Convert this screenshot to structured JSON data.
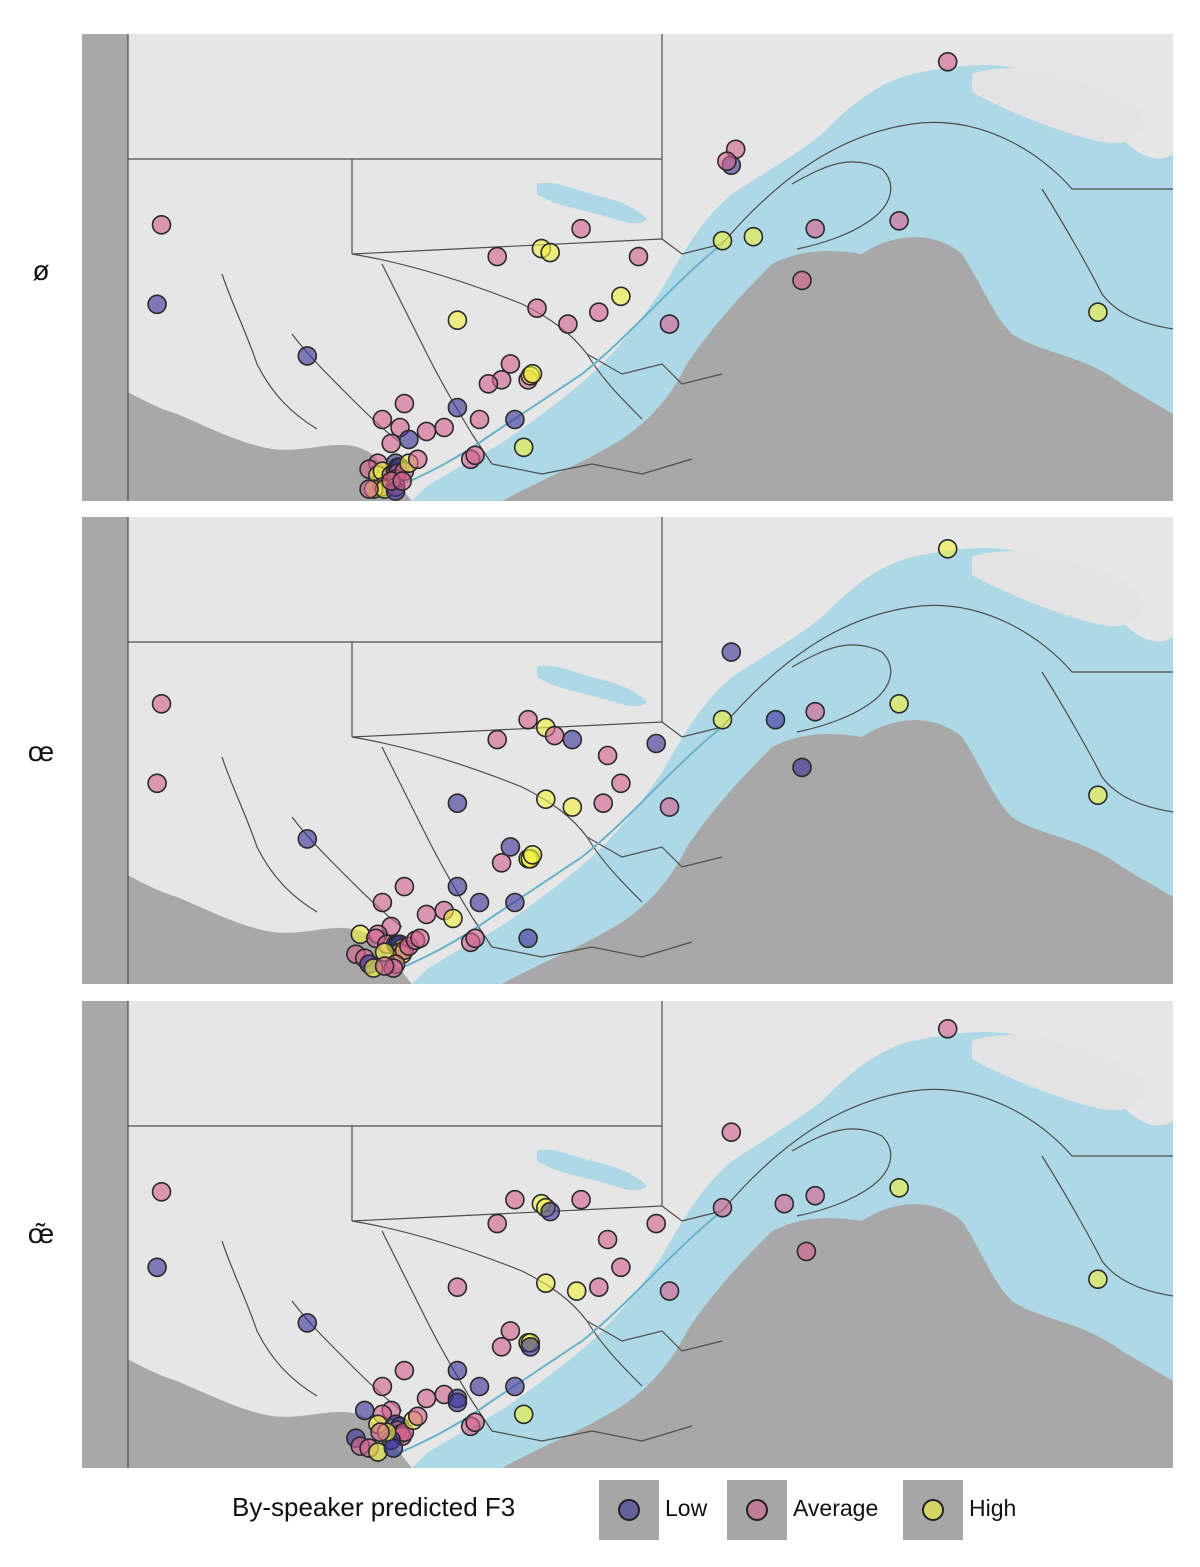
{
  "colors": {
    "land": "#e6e6e6",
    "foreign": "#a8a8a8",
    "water": "#aed8e6",
    "border": "#4d4d4d",
    "low": "#3b3598",
    "average": "#d2628e",
    "high": "#f0f040"
  },
  "facets": [
    {
      "label": "ø",
      "points": [
        {
          "lon": -78.9,
          "lat": 53.5,
          "level": "average"
        },
        {
          "lon": -79.0,
          "lat": 51.5,
          "level": "low"
        },
        {
          "lon": -75.6,
          "lat": 50.2,
          "level": "low"
        },
        {
          "lon": -71.3,
          "lat": 52.7,
          "level": "average"
        },
        {
          "lon": -69.4,
          "lat": 53.4,
          "level": "average"
        },
        {
          "lon": -70.3,
          "lat": 52.9,
          "level": "high"
        },
        {
          "lon": -70.1,
          "lat": 52.8,
          "level": "high"
        },
        {
          "lon": -65.9,
          "lat": 55.4,
          "level": "average"
        },
        {
          "lon": -66.0,
          "lat": 55.0,
          "level": "low"
        },
        {
          "lon": -66.1,
          "lat": 55.1,
          "level": "average"
        },
        {
          "lon": -64.1,
          "lat": 53.4,
          "level": "average"
        },
        {
          "lon": -65.5,
          "lat": 53.2,
          "level": "high"
        },
        {
          "lon": -66.2,
          "lat": 53.1,
          "level": "high"
        },
        {
          "lon": -68.1,
          "lat": 52.7,
          "level": "average"
        },
        {
          "lon": -62.2,
          "lat": 53.6,
          "level": "average"
        },
        {
          "lon": -61.1,
          "lat": 57.6,
          "level": "average"
        },
        {
          "lon": -64.4,
          "lat": 52.1,
          "level": "average"
        },
        {
          "lon": -68.5,
          "lat": 51.7,
          "level": "high"
        },
        {
          "lon": -70.4,
          "lat": 51.4,
          "level": "average"
        },
        {
          "lon": -69.0,
          "lat": 51.3,
          "level": "average"
        },
        {
          "lon": -69.7,
          "lat": 51.0,
          "level": "average"
        },
        {
          "lon": -67.4,
          "lat": 51.0,
          "level": "average"
        },
        {
          "lon": -72.2,
          "lat": 51.1,
          "level": "high"
        },
        {
          "lon": -57.7,
          "lat": 51.3,
          "level": "high"
        },
        {
          "lon": -71.0,
          "lat": 50.0,
          "level": "average"
        },
        {
          "lon": -71.2,
          "lat": 49.6,
          "level": "average"
        },
        {
          "lon": -71.5,
          "lat": 49.5,
          "level": "average"
        },
        {
          "lon": -70.6,
          "lat": 49.6,
          "level": "average"
        },
        {
          "lon": -70.55,
          "lat": 49.7,
          "level": "high"
        },
        {
          "lon": -70.5,
          "lat": 49.75,
          "level": "high"
        },
        {
          "lon": -72.2,
          "lat": 48.9,
          "level": "low"
        },
        {
          "lon": -73.4,
          "lat": 49.0,
          "level": "average"
        },
        {
          "lon": -73.9,
          "lat": 48.6,
          "level": "average"
        },
        {
          "lon": -72.5,
          "lat": 48.4,
          "level": "average"
        },
        {
          "lon": -71.7,
          "lat": 48.6,
          "level": "average"
        },
        {
          "lon": -73.5,
          "lat": 48.4,
          "level": "average"
        },
        {
          "lon": -73.7,
          "lat": 48.0,
          "level": "average"
        },
        {
          "lon": -73.3,
          "lat": 48.1,
          "level": "low"
        },
        {
          "lon": -72.9,
          "lat": 48.3,
          "level": "average"
        },
        {
          "lon": -70.9,
          "lat": 48.6,
          "level": "low"
        },
        {
          "lon": -71.9,
          "lat": 47.6,
          "level": "average"
        },
        {
          "lon": -71.8,
          "lat": 47.7,
          "level": "average"
        },
        {
          "lon": -70.7,
          "lat": 47.9,
          "level": "high"
        },
        {
          "lon": -73.6,
          "lat": 47.5,
          "level": "low"
        },
        {
          "lon": -74.0,
          "lat": 47.5,
          "level": "average"
        },
        {
          "lon": -74.2,
          "lat": 47.35,
          "level": "average"
        },
        {
          "lon": -74.0,
          "lat": 47.2,
          "level": "high"
        },
        {
          "lon": -73.9,
          "lat": 47.3,
          "level": "high"
        },
        {
          "lon": -73.7,
          "lat": 47.2,
          "level": "average"
        },
        {
          "lon": -73.6,
          "lat": 47.3,
          "level": "low"
        },
        {
          "lon": -73.55,
          "lat": 47.4,
          "level": "low"
        },
        {
          "lon": -73.5,
          "lat": 47.4,
          "level": "low"
        },
        {
          "lon": -73.55,
          "lat": 47.25,
          "level": "average"
        },
        {
          "lon": -73.6,
          "lat": 47.1,
          "level": "average"
        },
        {
          "lon": -73.4,
          "lat": 47.3,
          "level": "average"
        },
        {
          "lon": -73.3,
          "lat": 47.5,
          "level": "high"
        },
        {
          "lon": -73.1,
          "lat": 47.6,
          "level": "average"
        },
        {
          "lon": -73.9,
          "lat": 46.9,
          "level": "average"
        },
        {
          "lon": -74.1,
          "lat": 46.85,
          "level": "high"
        },
        {
          "lon": -73.85,
          "lat": 46.85,
          "level": "high"
        },
        {
          "lon": -73.6,
          "lat": 46.9,
          "level": "average"
        },
        {
          "lon": -73.6,
          "lat": 46.8,
          "level": "low"
        },
        {
          "lon": -74.2,
          "lat": 46.85,
          "level": "average"
        },
        {
          "lon": -73.7,
          "lat": 47.05,
          "level": "average"
        },
        {
          "lon": -73.45,
          "lat": 47.05,
          "level": "average"
        }
      ]
    },
    {
      "label": "œ",
      "points": [
        {
          "lon": -78.9,
          "lat": 53.6,
          "level": "average"
        },
        {
          "lon": -79.0,
          "lat": 51.6,
          "level": "average"
        },
        {
          "lon": -75.6,
          "lat": 50.2,
          "level": "low"
        },
        {
          "lon": -71.3,
          "lat": 52.7,
          "level": "average"
        },
        {
          "lon": -69.6,
          "lat": 52.7,
          "level": "low"
        },
        {
          "lon": -70.6,
          "lat": 53.2,
          "level": "average"
        },
        {
          "lon": -70.2,
          "lat": 53.0,
          "level": "high"
        },
        {
          "lon": -70.0,
          "lat": 52.8,
          "level": "average"
        },
        {
          "lon": -66.0,
          "lat": 54.9,
          "level": "low"
        },
        {
          "lon": -64.1,
          "lat": 53.4,
          "level": "average"
        },
        {
          "lon": -65.0,
          "lat": 53.2,
          "level": "low"
        },
        {
          "lon": -66.2,
          "lat": 53.2,
          "level": "high"
        },
        {
          "lon": -67.7,
          "lat": 52.6,
          "level": "low"
        },
        {
          "lon": -68.8,
          "lat": 52.3,
          "level": "average"
        },
        {
          "lon": -62.2,
          "lat": 53.6,
          "level": "high"
        },
        {
          "lon": -61.1,
          "lat": 57.5,
          "level": "high"
        },
        {
          "lon": -64.4,
          "lat": 52.0,
          "level": "low"
        },
        {
          "lon": -57.7,
          "lat": 51.3,
          "level": "high"
        },
        {
          "lon": -68.5,
          "lat": 51.6,
          "level": "average"
        },
        {
          "lon": -70.2,
          "lat": 51.2,
          "level": "high"
        },
        {
          "lon": -69.6,
          "lat": 51.0,
          "level": "high"
        },
        {
          "lon": -68.9,
          "lat": 51.1,
          "level": "average"
        },
        {
          "lon": -67.4,
          "lat": 51.0,
          "level": "average"
        },
        {
          "lon": -72.2,
          "lat": 51.1,
          "level": "low"
        },
        {
          "lon": -71.0,
          "lat": 50.0,
          "level": "low"
        },
        {
          "lon": -71.2,
          "lat": 49.6,
          "level": "average"
        },
        {
          "lon": -70.6,
          "lat": 49.7,
          "level": "high"
        },
        {
          "lon": -70.55,
          "lat": 49.7,
          "level": "high"
        },
        {
          "lon": -70.5,
          "lat": 49.8,
          "level": "high"
        },
        {
          "lon": -72.2,
          "lat": 49.0,
          "level": "low"
        },
        {
          "lon": -73.4,
          "lat": 49.0,
          "level": "average"
        },
        {
          "lon": -73.9,
          "lat": 48.6,
          "level": "average"
        },
        {
          "lon": -72.5,
          "lat": 48.4,
          "level": "average"
        },
        {
          "lon": -71.7,
          "lat": 48.6,
          "level": "low"
        },
        {
          "lon": -73.7,
          "lat": 48.0,
          "level": "average"
        },
        {
          "lon": -72.9,
          "lat": 48.3,
          "level": "average"
        },
        {
          "lon": -70.9,
          "lat": 48.6,
          "level": "low"
        },
        {
          "lon": -71.9,
          "lat": 47.6,
          "level": "average"
        },
        {
          "lon": -71.8,
          "lat": 47.7,
          "level": "average"
        },
        {
          "lon": -70.6,
          "lat": 47.7,
          "level": "low"
        },
        {
          "lon": -72.3,
          "lat": 48.2,
          "level": "high"
        },
        {
          "lon": -74.4,
          "lat": 47.8,
          "level": "high"
        },
        {
          "lon": -74.0,
          "lat": 47.8,
          "level": "average"
        },
        {
          "lon": -74.05,
          "lat": 47.7,
          "level": "average"
        },
        {
          "lon": -73.8,
          "lat": 47.55,
          "level": "average"
        },
        {
          "lon": -73.6,
          "lat": 47.55,
          "level": "low"
        },
        {
          "lon": -73.55,
          "lat": 47.55,
          "level": "low"
        },
        {
          "lon": -73.5,
          "lat": 47.55,
          "level": "low"
        },
        {
          "lon": -73.45,
          "lat": 47.45,
          "level": "high"
        },
        {
          "lon": -73.5,
          "lat": 47.35,
          "level": "high"
        },
        {
          "lon": -73.45,
          "lat": 47.3,
          "level": "high"
        },
        {
          "lon": -73.4,
          "lat": 47.4,
          "level": "average"
        },
        {
          "lon": -73.3,
          "lat": 47.5,
          "level": "average"
        },
        {
          "lon": -73.15,
          "lat": 47.65,
          "level": "average"
        },
        {
          "lon": -73.05,
          "lat": 47.7,
          "level": "average"
        },
        {
          "lon": -74.5,
          "lat": 47.3,
          "level": "average"
        },
        {
          "lon": -74.3,
          "lat": 47.2,
          "level": "average"
        },
        {
          "lon": -74.2,
          "lat": 47.05,
          "level": "low"
        },
        {
          "lon": -74.1,
          "lat": 46.95,
          "level": "high"
        },
        {
          "lon": -73.85,
          "lat": 47.35,
          "level": "high"
        },
        {
          "lon": -73.6,
          "lat": 47.05,
          "level": "average"
        },
        {
          "lon": -73.65,
          "lat": 46.95,
          "level": "average"
        },
        {
          "lon": -73.85,
          "lat": 47.0,
          "level": "average"
        }
      ]
    },
    {
      "label": "œ̃",
      "points": [
        {
          "lon": -78.9,
          "lat": 53.5,
          "level": "average"
        },
        {
          "lon": -79.0,
          "lat": 51.6,
          "level": "low"
        },
        {
          "lon": -75.6,
          "lat": 50.2,
          "level": "low"
        },
        {
          "lon": -71.3,
          "lat": 52.7,
          "level": "average"
        },
        {
          "lon": -69.4,
          "lat": 53.3,
          "level": "average"
        },
        {
          "lon": -70.9,
          "lat": 53.3,
          "level": "average"
        },
        {
          "lon": -70.3,
          "lat": 53.2,
          "level": "high"
        },
        {
          "lon": -70.2,
          "lat": 53.1,
          "level": "high"
        },
        {
          "lon": -70.1,
          "lat": 53.0,
          "level": "low"
        },
        {
          "lon": -66.0,
          "lat": 55.0,
          "level": "average"
        },
        {
          "lon": -64.1,
          "lat": 53.4,
          "level": "average"
        },
        {
          "lon": -64.8,
          "lat": 53.2,
          "level": "average"
        },
        {
          "lon": -66.2,
          "lat": 53.1,
          "level": "average"
        },
        {
          "lon": -67.7,
          "lat": 52.7,
          "level": "average"
        },
        {
          "lon": -68.8,
          "lat": 52.3,
          "level": "average"
        },
        {
          "lon": -62.2,
          "lat": 53.6,
          "level": "high"
        },
        {
          "lon": -61.1,
          "lat": 57.6,
          "level": "average"
        },
        {
          "lon": -64.3,
          "lat": 52.0,
          "level": "average"
        },
        {
          "lon": -57.7,
          "lat": 51.3,
          "level": "high"
        },
        {
          "lon": -68.5,
          "lat": 51.6,
          "level": "average"
        },
        {
          "lon": -70.2,
          "lat": 51.2,
          "level": "high"
        },
        {
          "lon": -69.5,
          "lat": 51.0,
          "level": "high"
        },
        {
          "lon": -69.0,
          "lat": 51.1,
          "level": "average"
        },
        {
          "lon": -67.4,
          "lat": 51.0,
          "level": "average"
        },
        {
          "lon": -72.2,
          "lat": 51.1,
          "level": "average"
        },
        {
          "lon": -71.0,
          "lat": 50.0,
          "level": "average"
        },
        {
          "lon": -71.2,
          "lat": 49.6,
          "level": "average"
        },
        {
          "lon": -70.6,
          "lat": 49.7,
          "level": "high"
        },
        {
          "lon": -70.55,
          "lat": 49.7,
          "level": "high"
        },
        {
          "lon": -70.55,
          "lat": 49.6,
          "level": "low"
        },
        {
          "lon": -72.2,
          "lat": 49.0,
          "level": "low"
        },
        {
          "lon": -73.4,
          "lat": 49.0,
          "level": "average"
        },
        {
          "lon": -73.9,
          "lat": 48.6,
          "level": "average"
        },
        {
          "lon": -72.5,
          "lat": 48.4,
          "level": "average"
        },
        {
          "lon": -71.7,
          "lat": 48.6,
          "level": "low"
        },
        {
          "lon": -73.7,
          "lat": 48.0,
          "level": "average"
        },
        {
          "lon": -72.9,
          "lat": 48.3,
          "level": "average"
        },
        {
          "lon": -70.9,
          "lat": 48.6,
          "level": "low"
        },
        {
          "lon": -71.9,
          "lat": 47.6,
          "level": "average"
        },
        {
          "lon": -71.8,
          "lat": 47.7,
          "level": "average"
        },
        {
          "lon": -70.7,
          "lat": 47.9,
          "level": "high"
        },
        {
          "lon": -72.2,
          "lat": 48.3,
          "level": "low"
        },
        {
          "lon": -72.2,
          "lat": 48.2,
          "level": "low"
        },
        {
          "lon": -74.3,
          "lat": 48.0,
          "level": "low"
        },
        {
          "lon": -73.9,
          "lat": 47.9,
          "level": "average"
        },
        {
          "lon": -74.0,
          "lat": 47.65,
          "level": "high"
        },
        {
          "lon": -73.6,
          "lat": 47.65,
          "level": "low"
        },
        {
          "lon": -73.5,
          "lat": 47.6,
          "level": "low"
        },
        {
          "lon": -73.55,
          "lat": 47.5,
          "level": "average"
        },
        {
          "lon": -73.5,
          "lat": 47.4,
          "level": "average"
        },
        {
          "lon": -73.45,
          "lat": 47.35,
          "level": "average"
        },
        {
          "lon": -73.4,
          "lat": 47.45,
          "level": "average"
        },
        {
          "lon": -73.2,
          "lat": 47.75,
          "level": "high"
        },
        {
          "lon": -73.1,
          "lat": 47.85,
          "level": "average"
        },
        {
          "lon": -74.5,
          "lat": 47.3,
          "level": "low"
        },
        {
          "lon": -74.4,
          "lat": 47.1,
          "level": "average"
        },
        {
          "lon": -74.2,
          "lat": 47.05,
          "level": "average"
        },
        {
          "lon": -74.0,
          "lat": 46.95,
          "level": "high"
        },
        {
          "lon": -73.7,
          "lat": 47.25,
          "level": "low"
        },
        {
          "lon": -73.65,
          "lat": 47.05,
          "level": "low"
        },
        {
          "lon": -73.8,
          "lat": 47.45,
          "level": "high"
        },
        {
          "lon": -73.95,
          "lat": 47.45,
          "level": "average"
        }
      ]
    }
  ],
  "legend": {
    "title": "By-speaker predicted F3",
    "items": [
      {
        "level": "low",
        "label": "Low"
      },
      {
        "level": "average",
        "label": "Average"
      },
      {
        "level": "high",
        "label": "High"
      }
    ]
  }
}
